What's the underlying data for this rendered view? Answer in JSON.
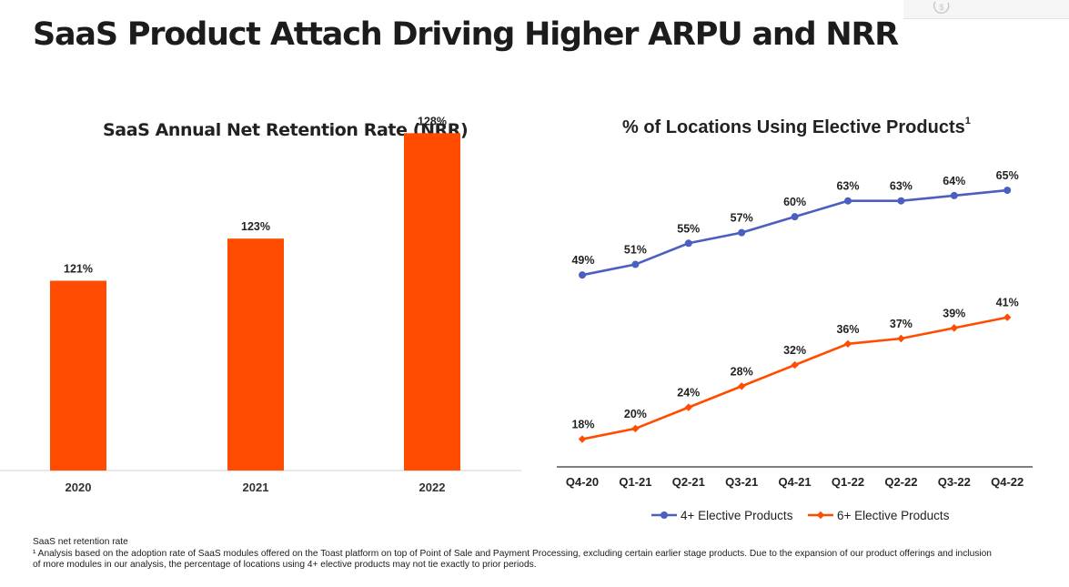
{
  "page": {
    "title": "SaaS Product Attach Driving Higher ARPU and NRR"
  },
  "chart_data": [
    {
      "type": "bar",
      "title": "SaaS Annual Net Retention Rate (NRR)",
      "categories": [
        "2020",
        "2021",
        "2022"
      ],
      "values": [
        121,
        123,
        128
      ],
      "value_labels": [
        "121%",
        "123%",
        "128%"
      ],
      "ylim": [
        112,
        130
      ],
      "color": "#FF4C00",
      "grid": false
    },
    {
      "type": "line",
      "title": "% of Locations Using Elective Products",
      "title_superscript": "1",
      "categories": [
        "Q4-20",
        "Q1-21",
        "Q2-21",
        "Q3-21",
        "Q4-21",
        "Q1-22",
        "Q2-22",
        "Q3-22",
        "Q4-22"
      ],
      "series": [
        {
          "name": "4+ Elective Products",
          "values": [
            49,
            51,
            55,
            57,
            60,
            63,
            63,
            64,
            65
          ],
          "labels": [
            "49%",
            "51%",
            "55%",
            "57%",
            "60%",
            "63%",
            "63%",
            "64%",
            "65%"
          ],
          "color": "#4A5FBF",
          "marker": "circle"
        },
        {
          "name": "6+ Elective Products",
          "values": [
            18,
            20,
            24,
            28,
            32,
            36,
            37,
            39,
            41
          ],
          "labels": [
            "18%",
            "20%",
            "24%",
            "28%",
            "32%",
            "36%",
            "37%",
            "39%",
            "41%"
          ],
          "color": "#FF4C00",
          "marker": "diamond"
        }
      ],
      "ylim": [
        15,
        70
      ],
      "legend": "bottom",
      "grid": false
    }
  ],
  "footnote": {
    "line1": "SaaS net retention rate",
    "line2": "¹ Analysis based on the adoption rate of SaaS modules  offered on the Toast platform on top of Point of Sale and Payment Processing, excluding certain earlier stage products.  Due to the expansion of our product offerings and inclusion",
    "line3": "of more modules  in our analysis, the percentage of locations using 4+ elective products may not tie exactly to prior periods."
  },
  "icons": {
    "corner": "dollar-refresh-icon"
  }
}
